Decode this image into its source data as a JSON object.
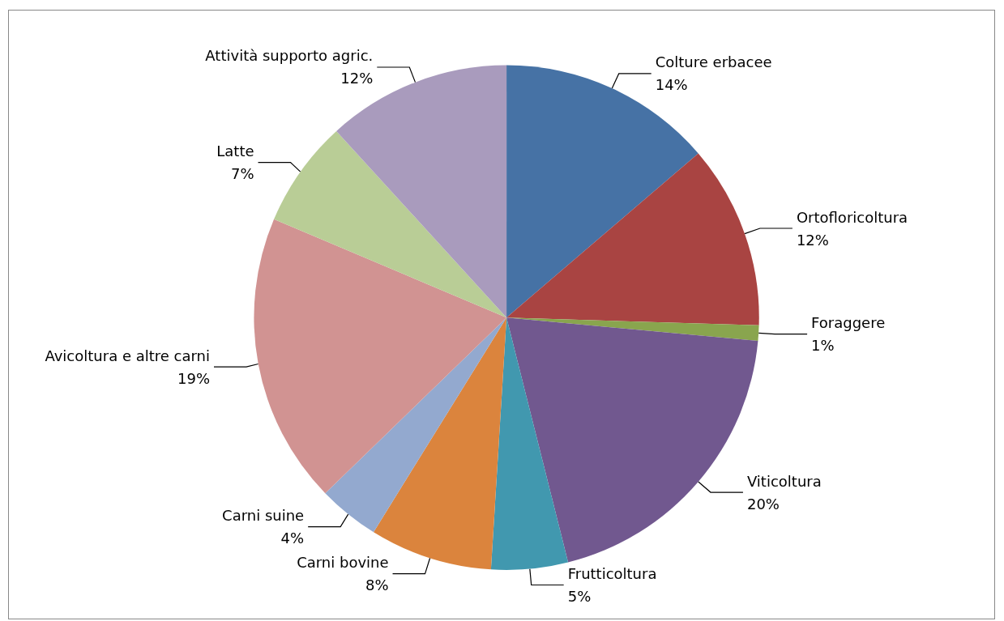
{
  "chart_data": {
    "type": "pie",
    "categories": [
      "Colture erbacee",
      "Ortofloricoltura",
      "Foraggere",
      "Viticoltura",
      "Frutticoltura",
      "Carni bovine",
      "Carni suine",
      "Avicoltura e altre carni",
      "Latte",
      "Attività supporto agric."
    ],
    "values": [
      14,
      12,
      1,
      20,
      5,
      8,
      4,
      19,
      7,
      12
    ],
    "colors": [
      "#4672a5",
      "#a94442",
      "#89a54e",
      "#71588f",
      "#4198af",
      "#db843d",
      "#93a9cf",
      "#d19392",
      "#b9cd96",
      "#a99bbd"
    ],
    "value_labels": [
      "14%",
      "12%",
      "1%",
      "20%",
      "5%",
      "8%",
      "4%",
      "19%",
      "7%",
      "12%"
    ],
    "legend": false
  }
}
